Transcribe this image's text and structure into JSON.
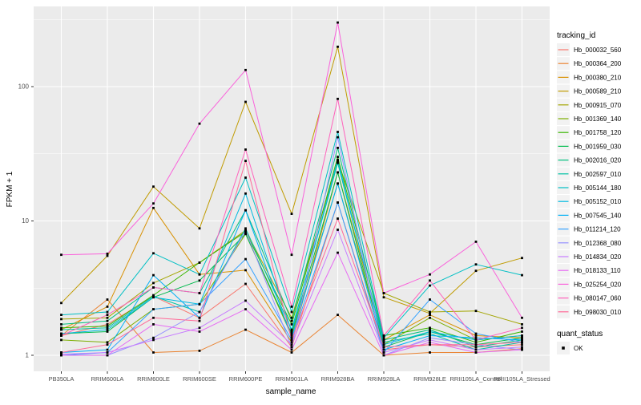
{
  "chart_data": {
    "type": "line",
    "title": "",
    "xlabel": "sample_name",
    "ylabel": "FPKM + 1",
    "x_scale": "categorical",
    "y_scale": "log10",
    "y_ticks": [
      1,
      10,
      100
    ],
    "y_minor": [
      3.162,
      31.62,
      316.2
    ],
    "ylim_log": [
      -0.125,
      2.6
    ],
    "grid": true,
    "panel_bg": "#EBEBEB",
    "grid_color": "#FFFFFF",
    "tick_label_color": "#4D4D4D",
    "axis_title_color": "#000000",
    "point_color": "#000000",
    "categories": [
      "PB350LA",
      "RRIM600LA",
      "RRIM600LE",
      "RRIM600SE",
      "RRIM600PE",
      "RRIM901LA",
      "RRIM928BA",
      "RRIM928LA",
      "RRIM928LE",
      "RRII105LA_Control",
      "RRII105LA_Stressed"
    ],
    "series": [
      {
        "name": "Hb_000032_560",
        "color": "#F8766D",
        "values": [
          1.4,
          1.7,
          2.75,
          1.9,
          3.4,
          1.15,
          13.7,
          1.1,
          1.2,
          1.15,
          1.2
        ]
      },
      {
        "name": "Hb_000364_200",
        "color": "#EA8331",
        "values": [
          1.4,
          2.6,
          1.05,
          1.08,
          1.55,
          1.05,
          2.0,
          1.0,
          1.05,
          1.05,
          1.12
        ]
      },
      {
        "name": "Hb_000380_210",
        "color": "#D89000",
        "values": [
          1.55,
          2.3,
          12.5,
          4.0,
          4.3,
          1.25,
          23,
          1.3,
          2.0,
          1.4,
          1.35
        ]
      },
      {
        "name": "Hb_000589_210",
        "color": "#C09B00",
        "values": [
          2.45,
          5.5,
          18,
          8.8,
          77,
          11.3,
          198,
          2.7,
          2.05,
          4.25,
          5.3
        ]
      },
      {
        "name": "Hb_000915_070",
        "color": "#A3A500",
        "values": [
          1.86,
          1.9,
          3.45,
          4.9,
          8.5,
          1.9,
          28,
          2.9,
          2.1,
          2.14,
          1.7
        ]
      },
      {
        "name": "Hb_001369_140",
        "color": "#7CAE00",
        "values": [
          1.3,
          1.25,
          2.2,
          2.4,
          8.0,
          1.4,
          19,
          1.2,
          1.9,
          1.3,
          1.4
        ]
      },
      {
        "name": "Hb_001758_120",
        "color": "#39B600",
        "values": [
          1.6,
          1.65,
          2.8,
          4.9,
          8.3,
          1.7,
          30,
          1.4,
          1.6,
          1.25,
          1.5
        ]
      },
      {
        "name": "Hb_001959_030",
        "color": "#00BB4E",
        "values": [
          1.45,
          1.5,
          2.7,
          3.6,
          8.0,
          1.45,
          23,
          1.15,
          1.5,
          1.2,
          1.35
        ]
      },
      {
        "name": "Hb_002016_020",
        "color": "#00BF7D",
        "values": [
          1.7,
          1.8,
          3.2,
          2.9,
          12,
          1.8,
          35,
          1.3,
          1.55,
          1.15,
          1.3
        ]
      },
      {
        "name": "Hb_002597_010",
        "color": "#00C1A3",
        "values": [
          1.55,
          1.6,
          2.75,
          2.1,
          8.8,
          1.55,
          27,
          1.25,
          1.45,
          1.1,
          1.25
        ]
      },
      {
        "name": "Hb_005144_180",
        "color": "#00BFC4",
        "values": [
          2.0,
          2.1,
          5.75,
          4.0,
          21,
          2.1,
          46,
          1.35,
          3.3,
          4.75,
          3.95
        ]
      },
      {
        "name": "Hb_005152_010",
        "color": "#00BAE0",
        "values": [
          1.45,
          1.55,
          2.7,
          2.4,
          16,
          1.5,
          28.5,
          1.2,
          1.5,
          1.3,
          1.4
        ]
      },
      {
        "name": "Hb_007545_140",
        "color": "#00B0F6",
        "values": [
          1.05,
          1.1,
          3.95,
          1.9,
          12,
          1.35,
          19,
          1.1,
          1.4,
          1.35,
          1.3
        ]
      },
      {
        "name": "Hb_011214_120",
        "color": "#35A2FF",
        "values": [
          1.0,
          1.05,
          2.2,
          2.4,
          5.2,
          1.3,
          13.7,
          1.05,
          2.6,
          1.45,
          1.25
        ]
      },
      {
        "name": "Hb_012368_080",
        "color": "#9590FF",
        "values": [
          1.0,
          1.0,
          1.35,
          2.1,
          8.5,
          1.15,
          42,
          1.0,
          1.35,
          1.2,
          1.1
        ]
      },
      {
        "name": "Hb_014834_020",
        "color": "#C77CFF",
        "values": [
          1.02,
          1.05,
          1.3,
          1.6,
          2.55,
          1.2,
          8.6,
          1.05,
          1.3,
          1.1,
          1.15
        ]
      },
      {
        "name": "Hb_018133_110",
        "color": "#E76BF3",
        "values": [
          1.0,
          1.0,
          1.7,
          1.5,
          2.2,
          1.1,
          5.8,
          1.0,
          1.25,
          1.05,
          1.1
        ]
      },
      {
        "name": "Hb_025254_020",
        "color": "#FA62DB",
        "values": [
          5.6,
          5.7,
          13.5,
          53,
          133,
          5.6,
          300,
          2.9,
          4.0,
          7.0,
          1.9
        ]
      },
      {
        "name": "Hb_080147_060",
        "color": "#FF62BC",
        "values": [
          1.4,
          2.0,
          3.2,
          2.9,
          34,
          2.3,
          81,
          1.4,
          3.6,
          1.3,
          1.6
        ]
      },
      {
        "name": "Hb_098030_010",
        "color": "#FF6A98",
        "values": [
          1.05,
          1.2,
          1.9,
          1.8,
          28,
          1.3,
          10.4,
          1.15,
          1.2,
          1.2,
          1.25
        ]
      }
    ],
    "legend": {
      "position": "right",
      "color_legend_title": "tracking_id",
      "shape_legend_title": "quant_status",
      "shape_legend_items": [
        {
          "label": "OK",
          "shape": "black-square"
        }
      ],
      "key_bg": "#F2F2F2"
    }
  },
  "axes": {
    "x_title": "sample_name",
    "y_title": "FPKM + 1",
    "y_tick_labels": [
      "1",
      "10",
      "100"
    ]
  }
}
